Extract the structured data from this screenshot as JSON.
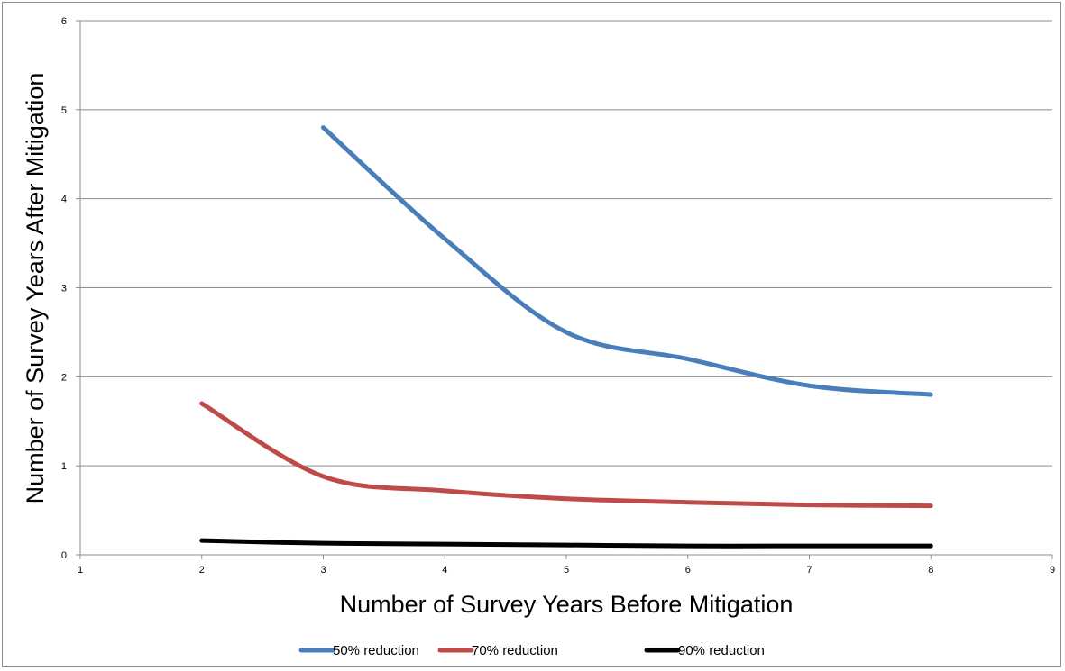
{
  "chart_data": {
    "type": "line",
    "title": "",
    "xlabel": "Number of Survey Years Before Mitigation",
    "ylabel": "Number of Survey Years After Mitigation",
    "xlim": [
      1,
      9
    ],
    "ylim": [
      0,
      6
    ],
    "xticks": [
      "1",
      "2",
      "3",
      "4",
      "5",
      "6",
      "7",
      "8",
      "9"
    ],
    "yticks": [
      "0",
      "1",
      "2",
      "3",
      "4",
      "5",
      "6"
    ],
    "grid": "horizontal",
    "legend_position": "bottom",
    "series": [
      {
        "name": "50% reduction",
        "color": "#4a7ebb",
        "points": [
          [
            3,
            4.8
          ],
          [
            4,
            3.55
          ],
          [
            5,
            2.5
          ],
          [
            6,
            2.2
          ],
          [
            7,
            1.9
          ],
          [
            8,
            1.8
          ]
        ]
      },
      {
        "name": "70% reduction",
        "color": "#be4b48",
        "points": [
          [
            2,
            1.7
          ],
          [
            3,
            0.88
          ],
          [
            4,
            0.72
          ],
          [
            5,
            0.63
          ],
          [
            6,
            0.59
          ],
          [
            7,
            0.56
          ],
          [
            8,
            0.55
          ]
        ]
      },
      {
        "name": "90% reduction",
        "color": "#000000",
        "points": [
          [
            2,
            0.16
          ],
          [
            3,
            0.13
          ],
          [
            4,
            0.12
          ],
          [
            5,
            0.11
          ],
          [
            6,
            0.1
          ],
          [
            7,
            0.1
          ],
          [
            8,
            0.1
          ]
        ]
      }
    ]
  }
}
